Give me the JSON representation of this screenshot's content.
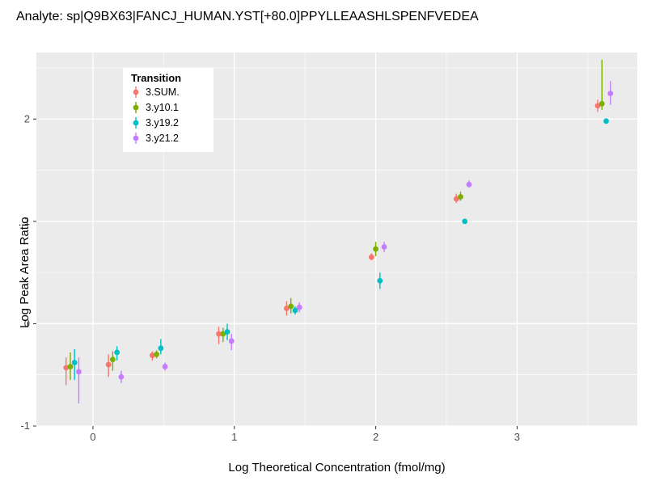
{
  "title": "Analyte: sp|Q9BX63|FANCJ_HUMAN.YST[+80.0]PPYLLEAASHLSPENFVEDEA",
  "chart_data": {
    "type": "scatter",
    "title": "Analyte: sp|Q9BX63|FANCJ_HUMAN.YST[+80.0]PPYLLEAASHLSPENFVEDEA",
    "xlabel": "Log Theoretical Concentration (fmol/mg)",
    "ylabel": "Log Peak Area Ratio",
    "xlim": [
      -0.4,
      3.85
    ],
    "ylim": [
      -1,
      2.65
    ],
    "xticks": [
      0,
      1,
      2,
      3
    ],
    "yticks": [
      -1,
      0,
      1,
      2
    ],
    "minor_xticks": [
      0.5,
      1.5,
      2.5,
      3.5
    ],
    "minor_yticks": [
      -0.5,
      0.5,
      1.5,
      2.5
    ],
    "grid": true,
    "panel_bg": "#EBEBEB",
    "grid_color": "#FFFFFF",
    "tick_label_color": "#4D4D4D",
    "legend": {
      "title": "Transition",
      "position": "top-left-inside",
      "entries": [
        "3.SUM.",
        "3.y10.1",
        "3.y19.2",
        "3.y21.2"
      ]
    },
    "series": [
      {
        "name": "3.SUM.",
        "color": "#F8766D",
        "points": [
          {
            "x": -0.19,
            "y": -0.43,
            "lo": -0.6,
            "hi": -0.33
          },
          {
            "x": 0.11,
            "y": -0.4,
            "lo": -0.52,
            "hi": -0.3
          },
          {
            "x": 0.42,
            "y": -0.31,
            "lo": -0.36,
            "hi": -0.27
          },
          {
            "x": 0.89,
            "y": -0.1,
            "lo": -0.2,
            "hi": -0.03
          },
          {
            "x": 1.37,
            "y": 0.15,
            "lo": 0.08,
            "hi": 0.22
          },
          {
            "x": 1.97,
            "y": 0.65,
            "lo": 0.62,
            "hi": 0.69
          },
          {
            "x": 2.57,
            "y": 1.22,
            "lo": 1.18,
            "hi": 1.27
          },
          {
            "x": 3.57,
            "y": 2.13,
            "lo": 2.07,
            "hi": 2.19
          }
        ]
      },
      {
        "name": "3.y10.1",
        "color": "#7CAE00",
        "points": [
          {
            "x": -0.16,
            "y": -0.42,
            "lo": -0.55,
            "hi": -0.28
          },
          {
            "x": 0.14,
            "y": -0.35,
            "lo": -0.46,
            "hi": -0.27
          },
          {
            "x": 0.45,
            "y": -0.3,
            "lo": -0.34,
            "hi": -0.26
          },
          {
            "x": 0.92,
            "y": -0.1,
            "lo": -0.18,
            "hi": -0.04
          },
          {
            "x": 1.4,
            "y": 0.17,
            "lo": 0.1,
            "hi": 0.25
          },
          {
            "x": 2.0,
            "y": 0.73,
            "lo": 0.66,
            "hi": 0.8
          },
          {
            "x": 2.6,
            "y": 1.24,
            "lo": 1.2,
            "hi": 1.29
          },
          {
            "x": 3.6,
            "y": 2.15,
            "lo": 2.09,
            "hi": 2.58
          }
        ]
      },
      {
        "name": "3.y19.2",
        "color": "#00BFC4",
        "points": [
          {
            "x": -0.13,
            "y": -0.38,
            "lo": -0.55,
            "hi": -0.25
          },
          {
            "x": 0.17,
            "y": -0.28,
            "lo": -0.36,
            "hi": -0.22
          },
          {
            "x": 0.48,
            "y": -0.24,
            "lo": -0.3,
            "hi": -0.15
          },
          {
            "x": 0.95,
            "y": -0.08,
            "lo": -0.16,
            "hi": 0.0
          },
          {
            "x": 1.43,
            "y": 0.13,
            "lo": 0.09,
            "hi": 0.17
          },
          {
            "x": 2.03,
            "y": 0.42,
            "lo": 0.34,
            "hi": 0.5
          },
          {
            "x": 2.63,
            "y": 1.0,
            "lo": 0.99,
            "hi": 1.02
          },
          {
            "x": 3.63,
            "y": 1.98,
            "lo": 1.96,
            "hi": 2.0
          }
        ]
      },
      {
        "name": "3.y21.2",
        "color": "#C77CFF",
        "points": [
          {
            "x": -0.1,
            "y": -0.47,
            "lo": -0.78,
            "hi": -0.33
          },
          {
            "x": 0.2,
            "y": -0.52,
            "lo": -0.58,
            "hi": -0.46
          },
          {
            "x": 0.51,
            "y": -0.42,
            "lo": -0.46,
            "hi": -0.38
          },
          {
            "x": 0.98,
            "y": -0.17,
            "lo": -0.26,
            "hi": -0.1
          },
          {
            "x": 1.46,
            "y": 0.16,
            "lo": 0.11,
            "hi": 0.21
          },
          {
            "x": 2.06,
            "y": 0.75,
            "lo": 0.7,
            "hi": 0.8
          },
          {
            "x": 2.66,
            "y": 1.36,
            "lo": 1.33,
            "hi": 1.4
          },
          {
            "x": 3.66,
            "y": 2.25,
            "lo": 2.14,
            "hi": 2.37
          }
        ]
      }
    ]
  }
}
